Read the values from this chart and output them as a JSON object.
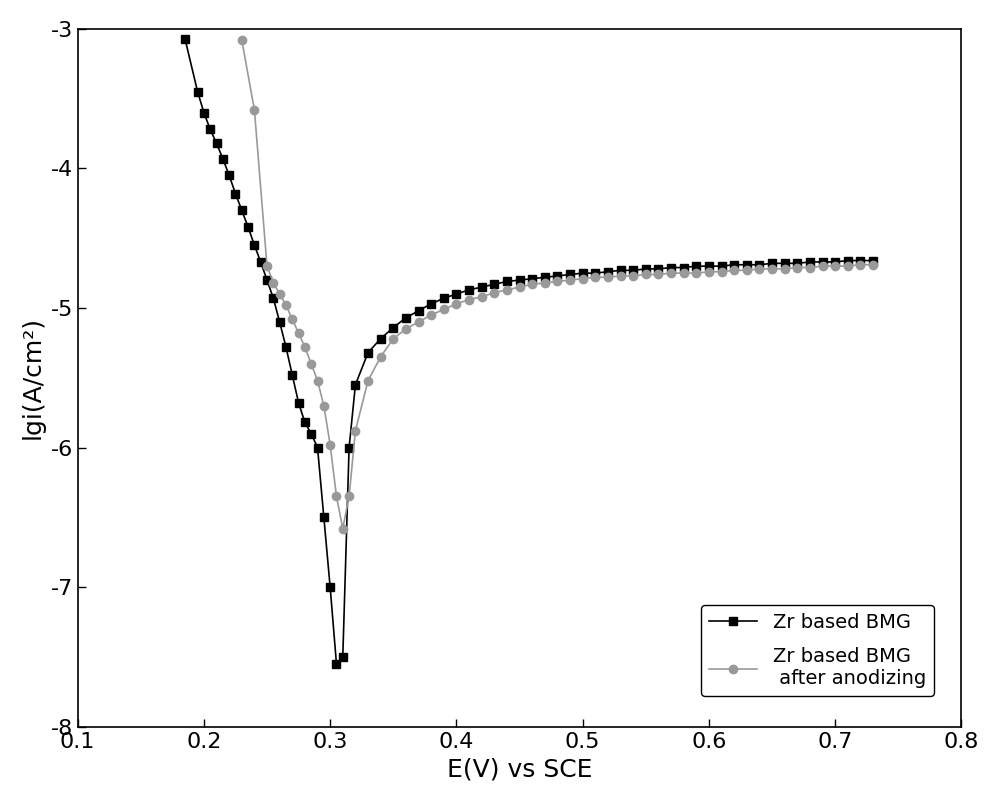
{
  "title": "",
  "xlabel": "E(V) vs SCE",
  "ylabel": "lgi(A/cm²)",
  "xlim": [
    0.1,
    0.8
  ],
  "ylim": [
    -8,
    -3
  ],
  "xticks": [
    0.1,
    0.2,
    0.3,
    0.4,
    0.5,
    0.6,
    0.7,
    0.8
  ],
  "yticks": [
    -8,
    -7,
    -6,
    -5,
    -4,
    -3
  ],
  "legend1_label": "Zr based BMG",
  "legend2_label": "Zr based BMG\n after anodizing",
  "color1": "#000000",
  "color2": "#999999",
  "marker1": "s",
  "marker2": "o",
  "line1_x": [
    0.185,
    0.195,
    0.2,
    0.205,
    0.21,
    0.215,
    0.22,
    0.225,
    0.23,
    0.235,
    0.24,
    0.245,
    0.25,
    0.255,
    0.26,
    0.265,
    0.27,
    0.275,
    0.28,
    0.285,
    0.29,
    0.295,
    0.3,
    0.305,
    0.31,
    0.315,
    0.32,
    0.33,
    0.34,
    0.35,
    0.36,
    0.37,
    0.38,
    0.39,
    0.4,
    0.41,
    0.42,
    0.43,
    0.44,
    0.45,
    0.46,
    0.47,
    0.48,
    0.49,
    0.5,
    0.51,
    0.52,
    0.53,
    0.54,
    0.55,
    0.56,
    0.57,
    0.58,
    0.59,
    0.6,
    0.61,
    0.62,
    0.63,
    0.64,
    0.65,
    0.66,
    0.67,
    0.68,
    0.69,
    0.7,
    0.71,
    0.72,
    0.73
  ],
  "line1_y": [
    -3.07,
    -3.45,
    -3.6,
    -3.72,
    -3.82,
    -3.93,
    -4.05,
    -4.18,
    -4.3,
    -4.42,
    -4.55,
    -4.67,
    -4.8,
    -4.93,
    -5.1,
    -5.28,
    -5.48,
    -5.68,
    -5.82,
    -5.9,
    -6.0,
    -6.5,
    -7.0,
    -7.55,
    -7.5,
    -6.0,
    -5.55,
    -5.32,
    -5.22,
    -5.14,
    -5.07,
    -5.02,
    -4.97,
    -4.93,
    -4.9,
    -4.87,
    -4.85,
    -4.83,
    -4.81,
    -4.8,
    -4.79,
    -4.78,
    -4.77,
    -4.76,
    -4.75,
    -4.75,
    -4.74,
    -4.73,
    -4.73,
    -4.72,
    -4.72,
    -4.71,
    -4.71,
    -4.7,
    -4.7,
    -4.7,
    -4.69,
    -4.69,
    -4.69,
    -4.68,
    -4.68,
    -4.68,
    -4.67,
    -4.67,
    -4.67,
    -4.66,
    -4.66,
    -4.66
  ],
  "line2_x": [
    0.23,
    0.24,
    0.25,
    0.255,
    0.26,
    0.265,
    0.27,
    0.275,
    0.28,
    0.285,
    0.29,
    0.295,
    0.3,
    0.305,
    0.31,
    0.315,
    0.32,
    0.33,
    0.34,
    0.35,
    0.36,
    0.37,
    0.38,
    0.39,
    0.4,
    0.41,
    0.42,
    0.43,
    0.44,
    0.45,
    0.46,
    0.47,
    0.48,
    0.49,
    0.5,
    0.51,
    0.52,
    0.53,
    0.54,
    0.55,
    0.56,
    0.57,
    0.58,
    0.59,
    0.6,
    0.61,
    0.62,
    0.63,
    0.64,
    0.65,
    0.66,
    0.67,
    0.68,
    0.69,
    0.7,
    0.71,
    0.72,
    0.73
  ],
  "line2_y": [
    -3.08,
    -3.58,
    -4.7,
    -4.82,
    -4.9,
    -4.98,
    -5.08,
    -5.18,
    -5.28,
    -5.4,
    -5.52,
    -5.7,
    -5.98,
    -6.35,
    -6.58,
    -6.35,
    -5.88,
    -5.52,
    -5.35,
    -5.22,
    -5.15,
    -5.1,
    -5.05,
    -5.01,
    -4.97,
    -4.94,
    -4.92,
    -4.89,
    -4.87,
    -4.85,
    -4.83,
    -4.82,
    -4.81,
    -4.8,
    -4.79,
    -4.78,
    -4.78,
    -4.77,
    -4.77,
    -4.76,
    -4.76,
    -4.75,
    -4.75,
    -4.75,
    -4.74,
    -4.74,
    -4.73,
    -4.73,
    -4.72,
    -4.72,
    -4.72,
    -4.71,
    -4.71,
    -4.7,
    -4.7,
    -4.7,
    -4.69,
    -4.69
  ],
  "background_color": "#ffffff",
  "axes_color": "#000000",
  "marker_size": 6,
  "linewidth": 1.2,
  "xlabel_fontsize": 18,
  "ylabel_fontsize": 18,
  "tick_fontsize": 16,
  "legend_fontsize": 14,
  "figwidth": 10.0,
  "figheight": 8.02,
  "dpi": 100
}
